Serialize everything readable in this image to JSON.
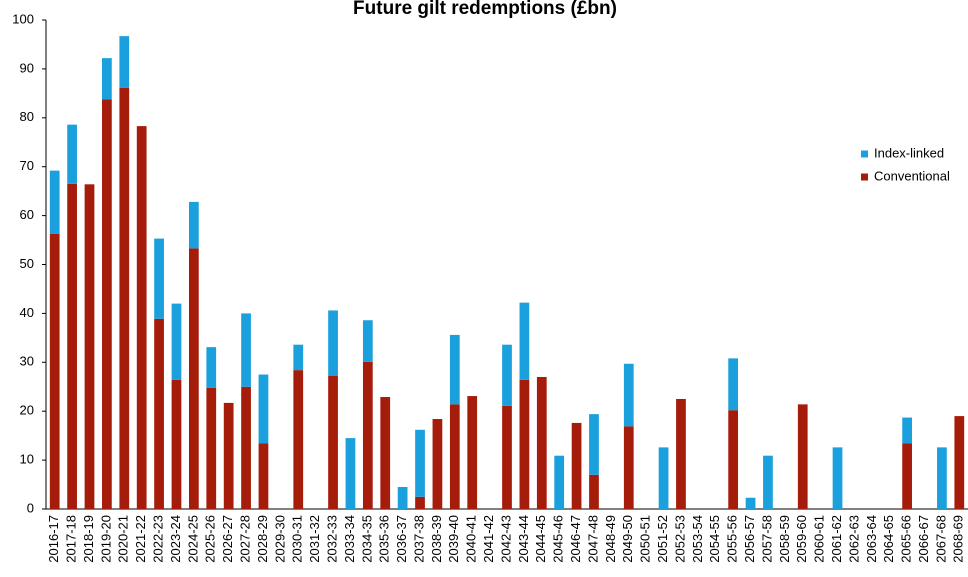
{
  "chart_data": {
    "type": "stacked_bar",
    "title": "Future gilt redemptions (£bn)",
    "categories": [
      "2016-17",
      "2017-18",
      "2018-19",
      "2019-20",
      "2020-21",
      "2021-22",
      "2022-23",
      "2023-24",
      "2024-25",
      "2025-26",
      "2026-27",
      "2027-28",
      "2028-29",
      "2029-30",
      "2030-31",
      "2031-32",
      "2032-33",
      "2033-34",
      "2034-35",
      "2035-36",
      "2036-37",
      "2037-38",
      "2038-39",
      "2039-40",
      "2040-41",
      "2041-42",
      "2042-43",
      "2043-44",
      "2044-45",
      "2045-46",
      "2046-47",
      "2047-48",
      "2048-49",
      "2049-50",
      "2050-51",
      "2051-52",
      "2052-53",
      "2053-54",
      "2054-55",
      "2055-56",
      "2056-57",
      "2057-58",
      "2058-59",
      "2059-60",
      "2060-61",
      "2061-62",
      "2062-63",
      "2063-64",
      "2064-65",
      "2065-66",
      "2066-67",
      "2067-68",
      "2068-69"
    ],
    "series": [
      {
        "name": "Conventional",
        "color": "#a61c0b",
        "values": [
          56.3,
          66.5,
          66.4,
          83.8,
          86.1,
          78.3,
          38.9,
          26.4,
          53.3,
          24.8,
          21.7,
          25.0,
          13.4,
          0,
          28.4,
          0,
          27.2,
          0,
          30.1,
          22.9,
          0,
          2.5,
          18.4,
          21.4,
          23.1,
          0,
          21.1,
          26.4,
          27.0,
          0,
          17.6,
          7.0,
          0,
          16.9,
          0,
          0,
          22.5,
          0,
          0,
          20.2,
          0,
          0,
          0,
          21.4,
          0,
          0,
          0,
          0,
          0,
          13.4,
          0,
          0,
          19.0
        ]
      },
      {
        "name": "Index-linked",
        "color": "#1aa0dc",
        "values": [
          12.9,
          12.1,
          0,
          8.4,
          10.6,
          0,
          16.4,
          15.6,
          9.5,
          8.3,
          0,
          15.0,
          14.1,
          0,
          5.2,
          0,
          13.4,
          14.5,
          8.5,
          0,
          4.5,
          13.7,
          0,
          14.2,
          0,
          0,
          12.5,
          15.8,
          0,
          10.9,
          0,
          12.4,
          0,
          12.8,
          0,
          12.6,
          0,
          0,
          0,
          10.6,
          2.3,
          10.9,
          0,
          0,
          0,
          12.6,
          0,
          0,
          0,
          5.3,
          0,
          12.6,
          0
        ]
      }
    ],
    "ylim": [
      0,
      100
    ],
    "yticks": [
      0,
      10,
      20,
      30,
      40,
      50,
      60,
      70,
      80,
      90,
      100
    ],
    "legend": "right"
  }
}
